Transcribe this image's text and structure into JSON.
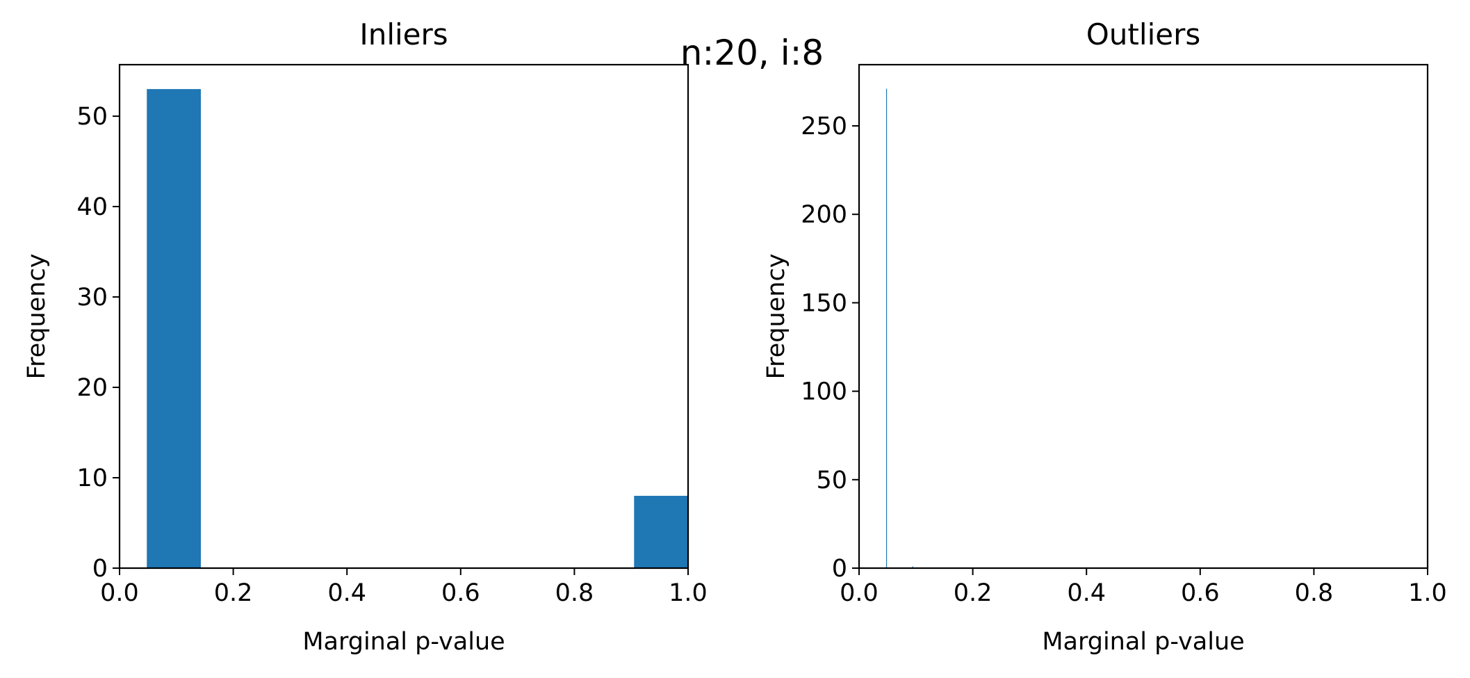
{
  "suptitle": "n:20, i:8",
  "colors": {
    "bar": "#1f77b4",
    "axis": "#000000"
  },
  "chart_data": [
    {
      "type": "bar",
      "title": "Inliers",
      "xlabel": "Marginal p-value",
      "ylabel": "Frequency",
      "xlim": [
        0.0,
        1.0
      ],
      "ylim": [
        0,
        55.7
      ],
      "xticks": [
        "0.0",
        "0.2",
        "0.4",
        "0.6",
        "0.8",
        "1.0"
      ],
      "yticks": [
        "0",
        "10",
        "20",
        "30",
        "40",
        "50"
      ],
      "bins": [
        {
          "x0": 0.048,
          "x1": 0.143,
          "value": 53
        },
        {
          "x0": 0.143,
          "x1": 0.238,
          "value": 0
        },
        {
          "x0": 0.238,
          "x1": 0.333,
          "value": 0
        },
        {
          "x0": 0.333,
          "x1": 0.429,
          "value": 0
        },
        {
          "x0": 0.429,
          "x1": 0.524,
          "value": 0
        },
        {
          "x0": 0.524,
          "x1": 0.619,
          "value": 0
        },
        {
          "x0": 0.619,
          "x1": 0.714,
          "value": 0
        },
        {
          "x0": 0.714,
          "x1": 0.81,
          "value": 0
        },
        {
          "x0": 0.81,
          "x1": 0.905,
          "value": 0
        },
        {
          "x0": 0.905,
          "x1": 1.0,
          "value": 8
        }
      ],
      "grid": false
    },
    {
      "type": "bar",
      "title": "Outliers",
      "xlabel": "Marginal p-value",
      "ylabel": "Frequency",
      "xlim": [
        0.0,
        1.0
      ],
      "ylim": [
        0,
        284.6
      ],
      "xticks": [
        "0.0",
        "0.2",
        "0.4",
        "0.6",
        "0.8",
        "1.0"
      ],
      "yticks": [
        "0",
        "50",
        "100",
        "150",
        "200",
        "250"
      ],
      "bins": [
        {
          "x0": 0.0476,
          "x1": 0.0485,
          "value": 271
        },
        {
          "x0": 0.0935,
          "x1": 0.0944,
          "value": 1
        }
      ],
      "grid": false
    }
  ]
}
